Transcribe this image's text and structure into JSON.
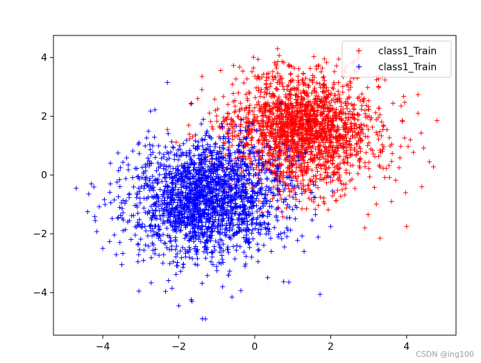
{
  "watermark": "CSDN @ing100",
  "chart_data": {
    "type": "scatter",
    "marker": "+",
    "xlim": [
      -5.3,
      5.3
    ],
    "ylim": [
      -5.45,
      4.75
    ],
    "xticks": [
      -4,
      -2,
      0,
      2,
      4
    ],
    "yticks": [
      -4,
      -2,
      0,
      2,
      4
    ],
    "xtick_labels": [
      "−4",
      "−2",
      "0",
      "2",
      "4"
    ],
    "ytick_labels": [
      "−4",
      "−2",
      "0",
      "2",
      "4"
    ],
    "grid": false,
    "legend_position": "top-right",
    "legend": [
      "class1_Train",
      "class1_Train"
    ],
    "series": [
      {
        "name": "class1_Train",
        "color": "#ff0000",
        "distribution": "2D gaussian cluster",
        "mean": [
          1.2,
          1.5
        ],
        "std": [
          1.0,
          1.0
        ],
        "count": 2000,
        "extent_x": [
          -2.3,
          4.8
        ],
        "extent_y": [
          -2.2,
          4.3
        ],
        "points": [
          [
            4.8,
            1.85
          ],
          [
            0.6,
            4.3
          ],
          [
            3.3,
            -2.15
          ],
          [
            4.4,
            -0.4
          ],
          [
            4.0,
            -1.75
          ],
          [
            4.3,
            2.1
          ],
          [
            2.6,
            3.3
          ],
          [
            -2.3,
            1.55
          ],
          [
            3.2,
            1.45
          ],
          [
            3.8,
            0.25
          ],
          [
            4.6,
            0.45
          ],
          [
            0.9,
            3.7
          ],
          [
            2.9,
            -1.8
          ],
          [
            4.1,
            1.2
          ],
          [
            3.6,
            -0.9
          ],
          [
            -1.5,
            2.6
          ],
          [
            2.7,
            3.3
          ]
        ]
      },
      {
        "name": "class1_Train",
        "color": "#0000ff",
        "distribution": "2D gaussian cluster",
        "mean": [
          -1.3,
          -0.8
        ],
        "std": [
          1.0,
          1.0
        ],
        "count": 2000,
        "extent_x": [
          -4.7,
          2.3
        ],
        "extent_y": [
          -4.9,
          3.15
        ],
        "points": [
          [
            -4.7,
            -0.45
          ],
          [
            -4.4,
            -1.25
          ],
          [
            -4.3,
            -0.3
          ],
          [
            -4.2,
            -1.55
          ],
          [
            -4.0,
            -2.5
          ],
          [
            -3.8,
            0.4
          ],
          [
            -3.6,
            0.75
          ],
          [
            -2.3,
            3.15
          ],
          [
            -1.3,
            -4.9
          ],
          [
            -2.0,
            -4.45
          ],
          [
            -3.05,
            -3.95
          ],
          [
            -0.6,
            -4.15
          ],
          [
            2.0,
            -1.75
          ],
          [
            0.9,
            -3.65
          ],
          [
            1.3,
            -2.6
          ],
          [
            -3.3,
            -1.55
          ],
          [
            -3.5,
            -3.05
          ],
          [
            1.6,
            -1.35
          ]
        ]
      }
    ]
  }
}
